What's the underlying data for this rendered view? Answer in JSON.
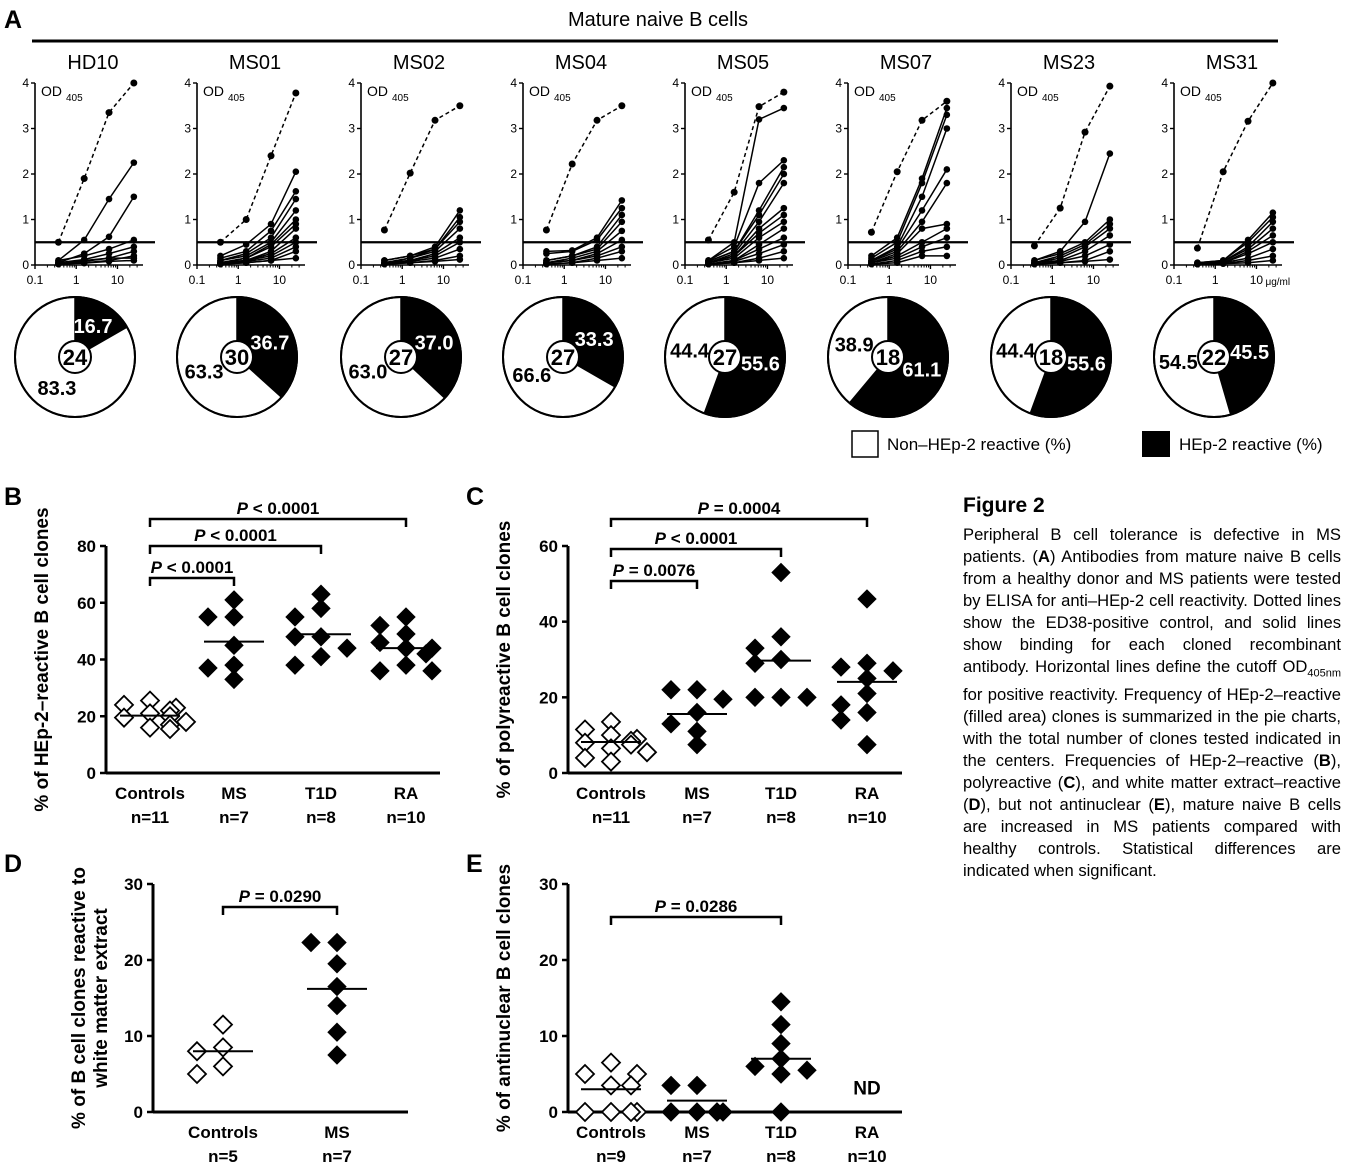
{
  "figure": {
    "title": "Figure 2",
    "caption": "Peripheral B cell tolerance is defective in MS patients. (A) Antibodies from mature naive B cells from a healthy donor and MS patients were tested by ELISA for anti–HEp-2 cell reactivity. Dotted lines show the ED38-positive control, and solid lines show binding for each cloned recombinant antibody. Horizontal lines define the cutoff OD405nm for positive reactivity. Frequency of HEp-2–reactive (filled area) clones is summarized in the pie charts, with the total number of clones tested indicated in the centers. Frequencies of HEp-2–reactive (B), polyreactive (C), and white matter extract–reactive (D), but not antinuclear (E), mature naive B cells are increased in MS patients compared with healthy controls. Statistical differences are indicated when significant.",
    "caption_parts": [
      {
        "t": "Peripheral B cell tolerance is defective in MS patients. (",
        "b": false
      },
      {
        "t": "A",
        "b": true
      },
      {
        "t": ") Antibodies from mature naive B cells from a healthy donor and MS patients were tested by ELISA for anti–HEp-2 cell reactivity. Dotted lines show the ED38-positive control, and solid lines show binding for each cloned recombinant antibody. Horizontal lines define the cutoff OD",
        "b": false
      },
      {
        "t": "405nm",
        "b": false,
        "sub": true
      },
      {
        "t": " for positive reactivity. Frequency of HEp-2–reactive (filled area) clones is summarized in the pie charts, with the total number of clones tested indicated in the centers. Frequencies of HEp-2–reactive (",
        "b": false
      },
      {
        "t": "B",
        "b": true
      },
      {
        "t": "), polyreactive (",
        "b": false
      },
      {
        "t": "C",
        "b": true
      },
      {
        "t": "), and white matter extract–reactive (",
        "b": false
      },
      {
        "t": "D",
        "b": true
      },
      {
        "t": "), but not antinuclear (",
        "b": false
      },
      {
        "t": "E",
        "b": true
      },
      {
        "t": "), mature naive B cells are increased in MS patients compared with healthy controls. Statistical differences are indicated when significant.",
        "b": false
      }
    ]
  },
  "chart_data": [
    {
      "panel": "A",
      "type": "line",
      "header": "Mature naive B cells",
      "x_scale": "log",
      "x_ticks": [
        "0.1",
        "1",
        "10"
      ],
      "x_unit": "μg/ml",
      "y_ticks": [
        "0",
        "1",
        "2",
        "3",
        "4"
      ],
      "ylim": [
        0,
        4
      ],
      "y_label_main": "OD",
      "y_label_sub": "405",
      "cutoff": 0.5,
      "x": [
        0.37,
        1.56,
        6.25,
        25
      ],
      "legend": {
        "white": "Non–HEp-2 reactive (%)",
        "black": "HEp-2 reactive (%)"
      },
      "subplots": [
        {
          "name": "HD10",
          "total": "24",
          "reactive": 16.7,
          "reactive_label": "16.7",
          "nonreactive_label": "83.3",
          "control": [
            0.5,
            1.9,
            3.35,
            4.0
          ],
          "clones": [
            [
              0.1,
              0.55,
              1.45,
              2.25
            ],
            [
              0.05,
              0.25,
              0.62,
              1.5
            ],
            [
              0.1,
              0.2,
              0.35,
              0.55
            ],
            [
              0.05,
              0.12,
              0.25,
              0.4
            ],
            [
              0.02,
              0.08,
              0.15,
              0.3
            ],
            [
              0.02,
              0.05,
              0.1,
              0.2
            ],
            [
              0.05,
              0.1,
              0.15,
              0.15
            ],
            [
              0.02,
              0.04,
              0.08,
              0.1
            ]
          ]
        },
        {
          "name": "MS01",
          "total": "30",
          "reactive": 36.7,
          "reactive_label": "36.7",
          "nonreactive_label": "63.3",
          "control": [
            0.5,
            1.0,
            2.4,
            3.78
          ],
          "clones": [
            [
              0.2,
              0.45,
              0.9,
              2.05
            ],
            [
              0.15,
              0.3,
              0.75,
              1.62
            ],
            [
              0.1,
              0.25,
              0.6,
              1.45
            ],
            [
              0.1,
              0.2,
              0.5,
              1.2
            ],
            [
              0.05,
              0.15,
              0.45,
              1.0
            ],
            [
              0.05,
              0.15,
              0.4,
              0.9
            ],
            [
              0.05,
              0.1,
              0.3,
              0.8
            ],
            [
              0.05,
              0.1,
              0.25,
              0.6
            ],
            [
              0.05,
              0.1,
              0.2,
              0.5
            ],
            [
              0.02,
              0.08,
              0.15,
              0.4
            ],
            [
              0.02,
              0.05,
              0.1,
              0.3
            ],
            [
              0.02,
              0.05,
              0.1,
              0.15
            ]
          ]
        },
        {
          "name": "MS02",
          "total": "27",
          "reactive": 37.0,
          "reactive_label": "37.0",
          "nonreactive_label": "63.0",
          "control": [
            0.77,
            2.02,
            3.18,
            3.5
          ],
          "clones": [
            [
              0.1,
              0.2,
              0.4,
              1.2
            ],
            [
              0.1,
              0.2,
              0.35,
              1.05
            ],
            [
              0.05,
              0.15,
              0.35,
              0.95
            ],
            [
              0.05,
              0.15,
              0.3,
              0.8
            ],
            [
              0.05,
              0.1,
              0.25,
              0.6
            ],
            [
              0.05,
              0.1,
              0.2,
              0.5
            ],
            [
              0.02,
              0.08,
              0.15,
              0.35
            ],
            [
              0.02,
              0.05,
              0.1,
              0.2
            ],
            [
              0.02,
              0.05,
              0.08,
              0.12
            ]
          ]
        },
        {
          "name": "MS04",
          "total": "27",
          "reactive": 33.3,
          "reactive_label": "33.3",
          "nonreactive_label": "66.6",
          "control": [
            0.77,
            2.22,
            3.18,
            3.5
          ],
          "clones": [
            [
              0.3,
              0.32,
              0.6,
              1.42
            ],
            [
              0.25,
              0.3,
              0.55,
              1.25
            ],
            [
              0.1,
              0.2,
              0.4,
              1.1
            ],
            [
              0.1,
              0.2,
              0.35,
              0.95
            ],
            [
              0.05,
              0.15,
              0.3,
              0.75
            ],
            [
              0.05,
              0.1,
              0.25,
              0.55
            ],
            [
              0.05,
              0.1,
              0.2,
              0.4
            ],
            [
              0.02,
              0.05,
              0.15,
              0.3
            ],
            [
              0.02,
              0.05,
              0.1,
              0.15
            ]
          ]
        },
        {
          "name": "MS05",
          "total": "27",
          "reactive": 55.6,
          "reactive_label": "55.6",
          "nonreactive_label": "44.4",
          "control": [
            0.55,
            1.6,
            3.48,
            3.8
          ],
          "clones": [
            [
              0.1,
              0.5,
              3.2,
              3.45
            ],
            [
              0.1,
              0.4,
              1.8,
              2.3
            ],
            [
              0.08,
              0.3,
              1.2,
              2.15
            ],
            [
              0.08,
              0.3,
              1.1,
              2.0
            ],
            [
              0.05,
              0.25,
              0.95,
              1.8
            ],
            [
              0.05,
              0.2,
              0.8,
              1.25
            ],
            [
              0.05,
              0.2,
              0.7,
              1.1
            ],
            [
              0.05,
              0.15,
              0.6,
              0.95
            ],
            [
              0.02,
              0.1,
              0.45,
              0.8
            ],
            [
              0.02,
              0.1,
              0.35,
              0.6
            ],
            [
              0.02,
              0.08,
              0.25,
              0.45
            ],
            [
              0.02,
              0.05,
              0.15,
              0.3
            ],
            [
              0.02,
              0.05,
              0.1,
              0.15
            ]
          ]
        },
        {
          "name": "MS07",
          "total": "18",
          "reactive": 61.1,
          "reactive_label": "61.1",
          "nonreactive_label": "38.9",
          "control": [
            0.72,
            2.05,
            3.18,
            3.6
          ],
          "clones": [
            [
              0.2,
              0.6,
              1.9,
              3.45
            ],
            [
              0.15,
              0.5,
              1.8,
              3.3
            ],
            [
              0.1,
              0.4,
              1.5,
              3.0
            ],
            [
              0.1,
              0.35,
              1.2,
              2.1
            ],
            [
              0.08,
              0.3,
              0.95,
              1.8
            ],
            [
              0.05,
              0.25,
              0.8,
              0.9
            ],
            [
              0.05,
              0.2,
              0.5,
              0.8
            ],
            [
              0.05,
              0.15,
              0.4,
              0.6
            ],
            [
              0.02,
              0.1,
              0.3,
              0.4
            ],
            [
              0.02,
              0.05,
              0.2,
              0.2
            ]
          ]
        },
        {
          "name": "MS23",
          "total": "18",
          "reactive": 55.6,
          "reactive_label": "55.6",
          "nonreactive_label": "44.4",
          "control": [
            0.42,
            1.25,
            2.92,
            3.93
          ],
          "clones": [
            [
              0.1,
              0.3,
              0.95,
              2.45
            ],
            [
              0.1,
              0.25,
              0.5,
              1.0
            ],
            [
              0.05,
              0.2,
              0.45,
              0.9
            ],
            [
              0.05,
              0.15,
              0.4,
              0.8
            ],
            [
              0.05,
              0.1,
              0.3,
              0.65
            ],
            [
              0.02,
              0.08,
              0.2,
              0.45
            ],
            [
              0.02,
              0.05,
              0.1,
              0.3
            ],
            [
              0.02,
              0.05,
              0.08,
              0.12
            ]
          ]
        },
        {
          "name": "MS31",
          "total": "22",
          "reactive": 45.5,
          "reactive_label": "45.5",
          "nonreactive_label": "54.5",
          "control": [
            0.37,
            2.05,
            3.16,
            4.0
          ],
          "clones": [
            [
              0.05,
              0.1,
              0.55,
              1.15
            ],
            [
              0.05,
              0.1,
              0.5,
              1.05
            ],
            [
              0.02,
              0.08,
              0.4,
              0.95
            ],
            [
              0.02,
              0.08,
              0.35,
              0.8
            ],
            [
              0.02,
              0.05,
              0.3,
              0.65
            ],
            [
              0.02,
              0.05,
              0.25,
              0.5
            ],
            [
              0.02,
              0.05,
              0.15,
              0.35
            ],
            [
              0.02,
              0.03,
              0.1,
              0.2
            ],
            [
              0.02,
              0.03,
              0.05,
              0.1
            ]
          ]
        }
      ]
    },
    {
      "panel": "B",
      "type": "scatter",
      "ylabel": "% of HEp-2–reactive B cell clones",
      "ylim": [
        0,
        80
      ],
      "y_ticks": [
        0,
        20,
        40,
        60,
        80
      ],
      "categories": [
        "Controls",
        "MS",
        "T1D",
        "RA"
      ],
      "counts": [
        "n=11",
        "n=7",
        "n=8",
        "n=10"
      ],
      "open": [
        true,
        false,
        false,
        false
      ],
      "groups": [
        [
          25.5,
          24,
          23,
          22,
          21,
          20,
          19.5,
          18,
          17,
          16,
          15.5
        ],
        [
          61,
          55,
          55,
          45,
          38,
          37,
          33
        ],
        [
          63,
          58,
          55,
          48,
          48,
          44,
          41,
          38
        ],
        [
          55,
          52,
          49,
          46,
          44,
          44,
          42,
          38,
          36,
          36
        ]
      ],
      "means": [
        20.2,
        46.3,
        48.9,
        44.0
      ],
      "brackets": [
        {
          "from": 0,
          "to": 1,
          "label_P": "P",
          "label_rest": " < 0.0001"
        },
        {
          "from": 0,
          "to": 2,
          "label_P": "P",
          "label_rest": " < 0.0001"
        },
        {
          "from": 0,
          "to": 3,
          "label_P": "P",
          "label_rest": " < 0.0001"
        }
      ]
    },
    {
      "panel": "C",
      "type": "scatter",
      "ylabel": "% of polyreactive B cell clones",
      "ylim": [
        0,
        60
      ],
      "y_ticks": [
        0,
        20,
        40,
        60
      ],
      "categories": [
        "Controls",
        "MS",
        "T1D",
        "RA"
      ],
      "counts": [
        "n=11",
        "n=7",
        "n=8",
        "n=10"
      ],
      "open": [
        true,
        false,
        false,
        false
      ],
      "groups": [
        [
          13.5,
          11.5,
          10,
          9,
          8.5,
          8,
          7.5,
          6.5,
          5.5,
          4,
          3
        ],
        [
          22,
          22,
          19.5,
          16,
          13,
          11,
          7.5
        ],
        [
          53,
          36,
          33,
          30,
          29,
          20,
          20,
          20
        ],
        [
          46,
          29,
          28,
          27,
          25,
          21,
          18,
          16,
          14,
          7.5
        ]
      ],
      "means": [
        8.2,
        15.6,
        29.7,
        24.1
      ],
      "brackets": [
        {
          "from": 0,
          "to": 1,
          "label_P": "P",
          "label_rest": " = 0.0076"
        },
        {
          "from": 0,
          "to": 2,
          "label_P": "P",
          "label_rest": " < 0.0001"
        },
        {
          "from": 0,
          "to": 3,
          "label_P": "P",
          "label_rest": " = 0.0004"
        }
      ]
    },
    {
      "panel": "D",
      "type": "scatter",
      "ylabel_line1": "% of  B cell clones reactive to",
      "ylabel_line2": "white matter extract",
      "ylim": [
        0,
        30
      ],
      "y_ticks": [
        0,
        10,
        20,
        30
      ],
      "categories": [
        "Controls",
        "MS"
      ],
      "counts": [
        "n=5",
        "n=7"
      ],
      "open": [
        true,
        false
      ],
      "groups": [
        [
          11.5,
          8.5,
          8,
          6,
          5
        ],
        [
          22.3,
          22.3,
          19.5,
          16.5,
          14,
          10.5,
          7.5
        ]
      ],
      "means": [
        8.0,
        16.2
      ],
      "brackets": [
        {
          "from": 0,
          "to": 1,
          "label_P": "P",
          "label_rest": " = 0.0290"
        }
      ]
    },
    {
      "panel": "E",
      "type": "scatter",
      "ylabel": "% of  antinuclear B cell clones",
      "ylim": [
        0,
        30
      ],
      "y_ticks": [
        0,
        10,
        20,
        30
      ],
      "categories": [
        "Controls",
        "MS",
        "T1D",
        "RA"
      ],
      "counts": [
        "n=9",
        "n=7",
        "n=8",
        "n=10"
      ],
      "open": [
        true,
        false,
        false,
        false
      ],
      "groups": [
        [
          6.5,
          5,
          5,
          3.5,
          3.5,
          0,
          0,
          0,
          0
        ],
        [
          3.5,
          3.5,
          0,
          0,
          0,
          0,
          0
        ],
        [
          14.5,
          11.5,
          9,
          7,
          6,
          5.5,
          5,
          0
        ],
        []
      ],
      "means": [
        3.0,
        1.5,
        7.0,
        null
      ],
      "nd_label": "ND",
      "brackets": [
        {
          "from": 0,
          "to": 2,
          "label_P": "P",
          "label_rest": " = 0.0286"
        }
      ]
    }
  ],
  "panel_letters": [
    "A",
    "B",
    "C",
    "D",
    "E"
  ]
}
